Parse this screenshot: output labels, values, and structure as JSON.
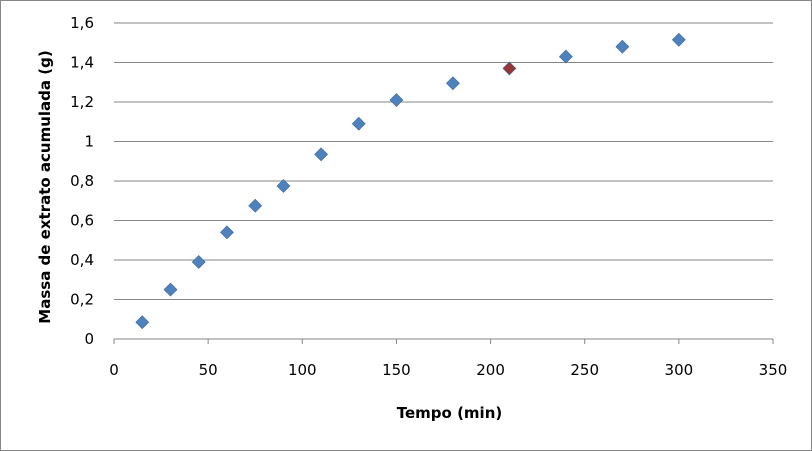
{
  "chart_data": {
    "type": "scatter",
    "title": "",
    "xlabel": "Tempo (min)",
    "ylabel": "Massa de extrato acumulada (g)",
    "xlim": [
      0,
      350
    ],
    "ylim": [
      0,
      1.6
    ],
    "x_ticks": [
      "0",
      "50",
      "100",
      "150",
      "200",
      "250",
      "300",
      "350"
    ],
    "y_ticks": [
      "0",
      "0,2",
      "0,4",
      "0,6",
      "0,8",
      "1",
      "1,2",
      "1,4",
      "1,6"
    ],
    "grid": "horizontal",
    "legend": "none",
    "marker": "diamond",
    "series": [
      {
        "color": "#4F81BD",
        "points": [
          {
            "x": 15,
            "y": 0.085
          },
          {
            "x": 30,
            "y": 0.25
          },
          {
            "x": 45,
            "y": 0.39
          },
          {
            "x": 60,
            "y": 0.54
          },
          {
            "x": 75,
            "y": 0.675
          },
          {
            "x": 90,
            "y": 0.775
          },
          {
            "x": 110,
            "y": 0.935
          },
          {
            "x": 130,
            "y": 1.09
          },
          {
            "x": 150,
            "y": 1.21
          },
          {
            "x": 180,
            "y": 1.295
          },
          {
            "x": 240,
            "y": 1.43
          },
          {
            "x": 270,
            "y": 1.48
          },
          {
            "x": 300,
            "y": 1.515
          }
        ]
      },
      {
        "color": "#953735",
        "points": [
          {
            "x": 210,
            "y": 1.37
          }
        ]
      }
    ]
  }
}
